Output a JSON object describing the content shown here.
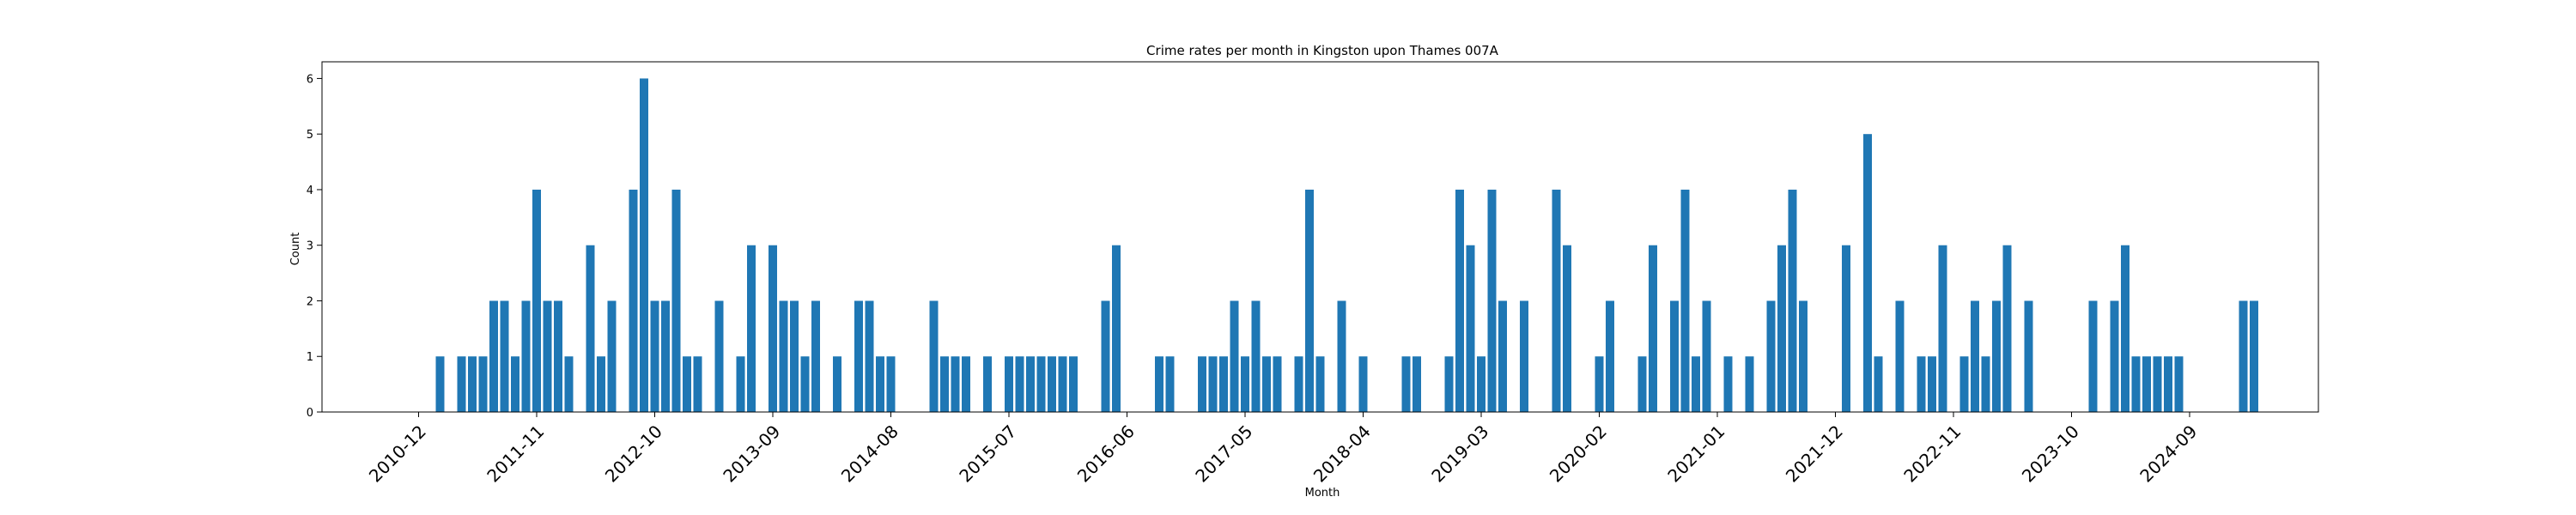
{
  "chart_data": {
    "type": "bar",
    "title": "Crime rates per month in Kingston upon Thames 007A",
    "xlabel": "Month",
    "ylabel": "Count",
    "ylim": [
      0,
      6.3
    ],
    "yticks": [
      0,
      1,
      2,
      3,
      4,
      5,
      6
    ],
    "xticks": [
      "2010-12",
      "2011-11",
      "2012-10",
      "2013-09",
      "2014-08",
      "2015-07",
      "2016-06",
      "2017-05",
      "2018-04",
      "2019-03",
      "2020-02",
      "2021-01",
      "2021-12",
      "2022-11",
      "2023-10",
      "2024-09"
    ],
    "xlim": [
      "2010-03",
      "2025-09"
    ],
    "bar_color": "#1f77b4",
    "grid": false,
    "x": [
      "2011-02",
      "2011-04",
      "2011-05",
      "2011-06",
      "2011-07",
      "2011-08",
      "2011-09",
      "2011-10",
      "2011-11",
      "2011-12",
      "2012-01",
      "2012-02",
      "2012-04",
      "2012-05",
      "2012-06",
      "2012-08",
      "2012-09",
      "2012-10",
      "2012-11",
      "2012-12",
      "2013-01",
      "2013-02",
      "2013-04",
      "2013-06",
      "2013-07",
      "2013-09",
      "2013-10",
      "2013-11",
      "2013-12",
      "2014-01",
      "2014-03",
      "2014-05",
      "2014-06",
      "2014-07",
      "2014-08",
      "2014-12",
      "2015-01",
      "2015-02",
      "2015-03",
      "2015-05",
      "2015-07",
      "2015-08",
      "2015-09",
      "2015-10",
      "2015-11",
      "2015-12",
      "2016-01",
      "2016-04",
      "2016-05",
      "2016-09",
      "2016-10",
      "2017-01",
      "2017-02",
      "2017-03",
      "2017-04",
      "2017-05",
      "2017-06",
      "2017-07",
      "2017-08",
      "2017-10",
      "2017-11",
      "2017-12",
      "2018-02",
      "2018-04",
      "2018-08",
      "2018-09",
      "2018-12",
      "2019-01",
      "2019-02",
      "2019-03",
      "2019-04",
      "2019-05",
      "2019-07",
      "2019-10",
      "2019-11",
      "2020-02",
      "2020-03",
      "2020-06",
      "2020-07",
      "2020-09",
      "2020-10",
      "2020-11",
      "2020-12",
      "2021-02",
      "2021-04",
      "2021-06",
      "2021-07",
      "2021-08",
      "2021-09",
      "2022-01",
      "2022-03",
      "2022-04",
      "2022-06",
      "2022-08",
      "2022-09",
      "2022-10",
      "2022-12",
      "2023-01",
      "2023-02",
      "2023-03",
      "2023-04",
      "2023-06",
      "2023-12",
      "2024-02",
      "2024-03",
      "2024-04",
      "2024-05",
      "2024-06",
      "2024-07",
      "2024-08",
      "2025-02",
      "2025-03"
    ],
    "values": [
      1,
      1,
      1,
      1,
      2,
      2,
      1,
      2,
      4,
      2,
      2,
      1,
      3,
      1,
      2,
      4,
      6,
      2,
      2,
      4,
      1,
      1,
      2,
      1,
      3,
      3,
      2,
      2,
      1,
      2,
      1,
      2,
      2,
      1,
      1,
      2,
      1,
      1,
      1,
      1,
      1,
      1,
      1,
      1,
      1,
      1,
      1,
      2,
      3,
      1,
      1,
      1,
      1,
      1,
      2,
      1,
      2,
      1,
      1,
      1,
      4,
      1,
      2,
      1,
      1,
      1,
      1,
      4,
      3,
      1,
      4,
      2,
      2,
      4,
      3,
      1,
      2,
      1,
      3,
      2,
      4,
      1,
      2,
      1,
      1,
      2,
      3,
      4,
      2,
      3,
      5,
      1,
      2,
      1,
      1,
      3,
      1,
      2,
      1,
      2,
      3,
      2,
      2,
      2,
      3,
      1,
      1,
      1,
      1,
      1,
      2,
      2
    ]
  }
}
